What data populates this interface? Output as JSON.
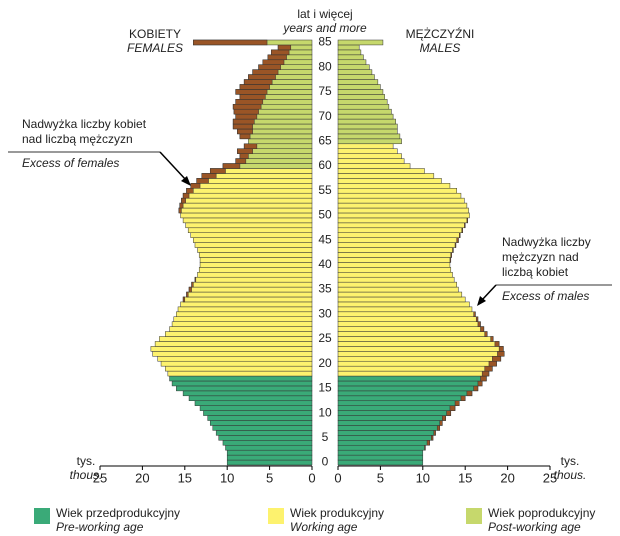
{
  "chart_data": {
    "type": "pyramid",
    "header": "lat i więcej",
    "header_en": "years and more",
    "left_label": "KOBIETY",
    "left_label_en": "FEMALES",
    "right_label": "MĘŻCZYŹNI",
    "right_label_en": "MALES",
    "unit": "tys.",
    "unit_en": "thous.",
    "categories": [
      0,
      null,
      null,
      null,
      null,
      5,
      null,
      null,
      null,
      null,
      10,
      null,
      null,
      null,
      null,
      15,
      null,
      null,
      null,
      null,
      20,
      null,
      null,
      null,
      null,
      25,
      null,
      null,
      null,
      null,
      30,
      null,
      null,
      null,
      null,
      35,
      null,
      null,
      null,
      null,
      40,
      null,
      null,
      null,
      null,
      45,
      null,
      null,
      null,
      null,
      50,
      null,
      null,
      null,
      null,
      55,
      null,
      null,
      null,
      null,
      60,
      null,
      null,
      null,
      null,
      65,
      null,
      null,
      null,
      null,
      70,
      null,
      null,
      null,
      null,
      75,
      null,
      null,
      null,
      null,
      80,
      null,
      null,
      null,
      null,
      85
    ],
    "xlim": [
      0,
      25
    ],
    "xticks": [
      0,
      5,
      10,
      15,
      20,
      25
    ],
    "excess_color": "#9a5526",
    "annotations": [
      {
        "lines": [
          "Nadwyżka liczby kobiet",
          "nad liczbą mężczyzn"
        ],
        "en": "Excess of females"
      },
      {
        "lines": [
          "Nadwyżka liczby",
          "mężczyzn nad",
          "liczbą kobiet"
        ],
        "en": "Excess of males"
      }
    ],
    "groups": [
      {
        "name": "Wiek przedprodukcyjny",
        "name_en": "Pre-working age",
        "color": "#3aaa78",
        "females": [
          10,
          10,
          10,
          10.2,
          10.5,
          11,
          11.3,
          11.7,
          12,
          12.3,
          12.8,
          13.2,
          13.8,
          14.5,
          15.2,
          16,
          16.5,
          16.8,
          null,
          null,
          null,
          null,
          null,
          null,
          null,
          null,
          null,
          null,
          null,
          null,
          null,
          null,
          null,
          null,
          null,
          null,
          null,
          null,
          null,
          null,
          null,
          null,
          null,
          null,
          null,
          null,
          null,
          null,
          null,
          null,
          null,
          null,
          null,
          null,
          null,
          null,
          null,
          null,
          null,
          null,
          null,
          null,
          null,
          null,
          null,
          null,
          null,
          null,
          null,
          null,
          null,
          null,
          null,
          null,
          null,
          null,
          null,
          null,
          null,
          null,
          null,
          null,
          null,
          null,
          null,
          null
        ],
        "males": [
          10,
          10,
          10,
          10.3,
          10.8,
          11.2,
          11.5,
          12,
          12.3,
          12.7,
          13.3,
          13.8,
          14.3,
          15,
          15.8,
          16.5,
          17,
          17.5,
          null,
          null,
          null,
          null,
          null,
          null,
          null,
          null,
          null,
          null,
          null,
          null,
          null,
          null,
          null,
          null,
          null,
          null,
          null,
          null,
          null,
          null,
          null,
          null,
          null,
          null,
          null,
          null,
          null,
          null,
          null,
          null,
          null,
          null,
          null,
          null,
          null,
          null,
          null,
          null,
          null,
          null,
          null,
          null,
          null,
          null,
          null,
          null,
          null,
          null,
          null,
          null,
          null,
          null,
          null,
          null,
          null,
          null,
          null,
          null,
          null,
          null,
          null,
          null,
          null,
          null,
          null,
          null
        ]
      },
      {
        "name": "Wiek produkcyjny",
        "name_en": "Working age",
        "color": "#fdf26e",
        "females": [
          null,
          null,
          null,
          null,
          null,
          null,
          null,
          null,
          null,
          null,
          null,
          null,
          null,
          null,
          null,
          null,
          null,
          null,
          17,
          17.3,
          17.8,
          18.2,
          18.8,
          19,
          18.5,
          18,
          17.3,
          16.8,
          16.5,
          16.3,
          16,
          15.8,
          15.5,
          15.2,
          14.8,
          14.5,
          14.2,
          13.8,
          13.5,
          13.3,
          13.2,
          13.2,
          13.3,
          13.5,
          13.8,
          14,
          14.3,
          14.6,
          14.9,
          15.2,
          15.5,
          15.7,
          15.6,
          15.4,
          15.2,
          14.8,
          14.3,
          13.6,
          13,
          12,
          null,
          null,
          null,
          null,
          null,
          null,
          null,
          null,
          null,
          null,
          null,
          null,
          null,
          null,
          null,
          null,
          null,
          null,
          null,
          null,
          null,
          null,
          null,
          null,
          null,
          null
        ],
        "males": [
          null,
          null,
          null,
          null,
          null,
          null,
          null,
          null,
          null,
          null,
          null,
          null,
          null,
          null,
          null,
          null,
          null,
          null,
          17.8,
          18.2,
          18.7,
          19.2,
          19.6,
          19.5,
          19,
          18.3,
          17.6,
          17.2,
          16.8,
          16.5,
          16.2,
          15.8,
          15.5,
          15,
          14.6,
          14.2,
          14,
          13.7,
          13.5,
          13.3,
          13.2,
          13.3,
          13.4,
          13.6,
          13.9,
          14.2,
          14.4,
          14.7,
          15,
          15.3,
          15.5,
          15.4,
          15.2,
          14.9,
          14.5,
          14,
          13.2,
          12.2,
          11.3,
          10.2,
          8.5,
          7.8,
          7.5,
          7,
          6.5,
          null,
          null,
          null,
          null,
          null,
          null,
          null,
          null,
          null,
          null,
          null,
          null,
          null,
          null,
          null,
          null,
          null,
          null,
          null,
          null,
          null
        ]
      },
      {
        "name": "Wiek poprodukcyjny",
        "name_en": "Post-working age",
        "color": "#c6d86c",
        "females": [
          null,
          null,
          null,
          null,
          null,
          null,
          null,
          null,
          null,
          null,
          null,
          null,
          null,
          null,
          null,
          null,
          null,
          null,
          null,
          null,
          null,
          null,
          null,
          null,
          null,
          null,
          null,
          null,
          null,
          null,
          null,
          null,
          null,
          null,
          null,
          null,
          null,
          null,
          null,
          null,
          null,
          null,
          null,
          null,
          null,
          null,
          null,
          null,
          null,
          null,
          null,
          null,
          null,
          null,
          null,
          null,
          null,
          null,
          null,
          null,
          10.5,
          9,
          8.5,
          8.8,
          8,
          7.5,
          8.5,
          8.8,
          9.3,
          9.3,
          9,
          9.2,
          9.3,
          9,
          8.5,
          9,
          8.5,
          8,
          7.5,
          7,
          6.3,
          5.8,
          5.2,
          4.8,
          4,
          14
        ],
        "males": [
          null,
          null,
          null,
          null,
          null,
          null,
          null,
          null,
          null,
          null,
          null,
          null,
          null,
          null,
          null,
          null,
          null,
          null,
          null,
          null,
          null,
          null,
          null,
          null,
          null,
          null,
          null,
          null,
          null,
          null,
          null,
          null,
          null,
          null,
          null,
          null,
          null,
          null,
          null,
          null,
          null,
          null,
          null,
          null,
          null,
          null,
          null,
          null,
          null,
          null,
          null,
          null,
          null,
          null,
          null,
          null,
          null,
          null,
          null,
          null,
          null,
          null,
          null,
          null,
          null,
          7.5,
          7.3,
          7,
          7,
          6.8,
          6.5,
          6.3,
          6,
          5.8,
          5.5,
          5.3,
          5,
          4.7,
          4.3,
          4,
          3.7,
          3.3,
          3,
          2.7,
          2.5,
          5.3
        ]
      }
    ]
  }
}
